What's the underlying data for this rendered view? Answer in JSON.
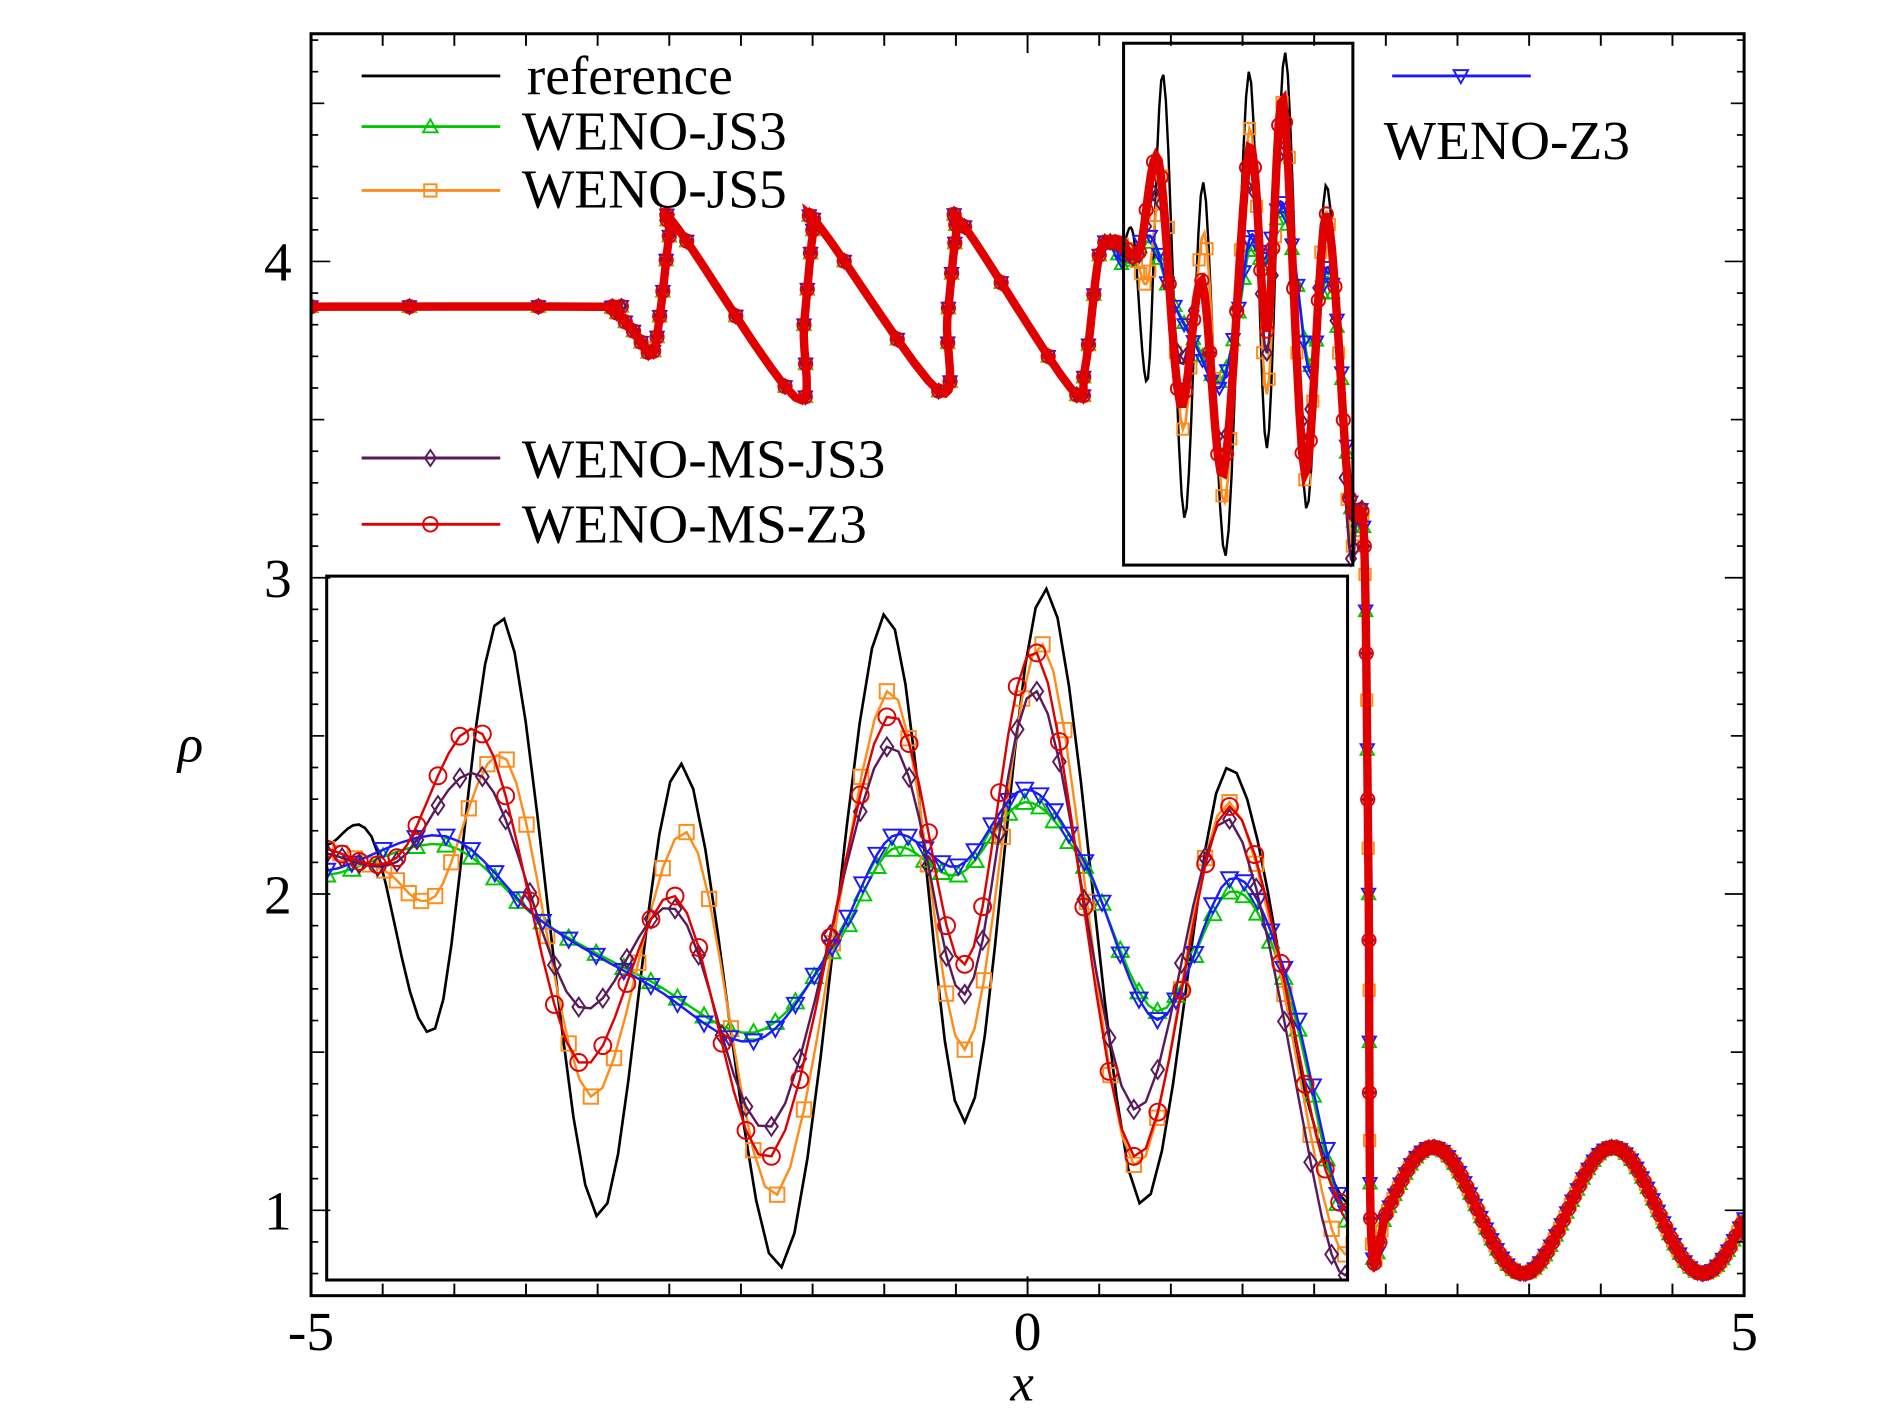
{
  "chart_data": {
    "type": "line",
    "title": "",
    "xlabel": "x",
    "ylabel": "ρ",
    "xlim": [
      -5,
      5
    ],
    "ylim": [
      0.73,
      4.72
    ],
    "xticks": [
      "-5",
      "0",
      "5"
    ],
    "xtick_values": [
      -5,
      0,
      5
    ],
    "yticks": [
      "1",
      "2",
      "3",
      "4"
    ],
    "ytick_values": [
      1,
      2,
      3,
      4
    ],
    "grid": false,
    "legend_placement": "top-left and top-right (split)",
    "zoom_window": {
      "xlim": [
        0.67,
        2.27
      ],
      "ylim": [
        3.04,
        4.69
      ],
      "inset_placement": "lower-left"
    },
    "shared_left": {
      "note": "profile common to all series for x < 0.67",
      "x": [
        -5,
        -3.0,
        -2.9,
        -2.75,
        -2.62,
        -2.56,
        -2.5,
        -2.45,
        -1.62,
        -1.56,
        -1.5,
        -1.45,
        -0.62,
        -0.56,
        -0.5,
        -0.44,
        0.3,
        0.4,
        0.5,
        0.6
      ],
      "y": [
        3.857,
        3.857,
        3.85,
        3.78,
        3.71,
        3.85,
        4.08,
        4.11,
        3.57,
        3.8,
        4.08,
        4.11,
        3.59,
        3.82,
        4.08,
        4.11,
        3.6,
        3.66,
        4.02,
        4.06
      ]
    },
    "shared_right": {
      "note": "shock and post-shock profile common to all series",
      "x": [
        2.3,
        2.35,
        2.38,
        2.4,
        2.5,
        2.6,
        2.7,
        2.8,
        2.9,
        3.0,
        3.1,
        3.2,
        3.3,
        3.4,
        3.5,
        3.6,
        3.7,
        3.8,
        3.9,
        4.0,
        4.1,
        4.2,
        4.3,
        4.4,
        4.5,
        4.6,
        4.7,
        4.8,
        4.9,
        5.0
      ],
      "y": [
        3.2,
        3.1,
        2.0,
        0.893,
        0.987,
        1.084,
        1.161,
        1.198,
        1.187,
        1.13,
        1.041,
        0.942,
        0.858,
        0.808,
        0.804,
        0.85,
        0.932,
        1.03,
        1.121,
        1.183,
        1.199,
        1.167,
        1.093,
        0.998,
        0.903,
        0.831,
        0.8,
        0.819,
        0.882,
        0.974
      ]
    },
    "series": [
      {
        "name": "reference",
        "color": "#000000",
        "marker": "none",
        "x": [
          0.67,
          0.74,
          0.84,
          0.948,
          1.093,
          1.226,
          1.383,
          1.543,
          1.67,
          1.798,
          1.944,
          2.08,
          2.2,
          2.255
        ],
        "y": [
          4.06,
          4.08,
          3.63,
          4.59,
          3.19,
          4.25,
          3.07,
          4.6,
          3.41,
          4.66,
          3.22,
          4.24,
          3.5,
          3.25
        ]
      },
      {
        "name": "WENO-JS3",
        "color": "#00c800",
        "marker": "triangle-up",
        "x": [
          0.67,
          0.857,
          1.008,
          1.178,
          1.339,
          1.462,
          1.556,
          1.66,
          1.764,
          1.858,
          1.972,
          2.085,
          2.17,
          2.255
        ],
        "y": [
          3.99,
          4.06,
          3.88,
          3.74,
          3.62,
          3.81,
          4.05,
          3.99,
          4.16,
          4.01,
          3.67,
          3.95,
          3.75,
          3.22
        ]
      },
      {
        "name": "WENO-JS5",
        "color": "#ff8c1a",
        "marker": "square",
        "x": [
          0.67,
          0.76,
          0.84,
          0.952,
          1.084,
          1.234,
          1.376,
          1.548,
          1.67,
          1.792,
          1.935,
          2.085,
          2.245
        ],
        "y": [
          4.05,
          4.0,
          3.94,
          4.26,
          3.47,
          4.09,
          3.24,
          4.42,
          3.58,
          4.53,
          3.31,
          4.16,
          3.16
        ]
      },
      {
        "name": "WENO-Z3",
        "color": "#1a1aff",
        "marker": "triangle-down",
        "x": [
          0.67,
          0.857,
          1.008,
          1.178,
          1.339,
          1.462,
          1.556,
          1.66,
          1.764,
          1.858,
          1.972,
          2.085,
          2.17,
          2.255
        ],
        "y": [
          4.0,
          4.08,
          3.88,
          3.73,
          3.6,
          3.82,
          4.08,
          4.01,
          4.19,
          4.02,
          3.65,
          3.98,
          3.77,
          3.24
        ]
      },
      {
        "name": "WENO-MS-JS3",
        "color": "#5a1a5a",
        "marker": "diamond",
        "x": [
          0.67,
          0.78,
          0.914,
          1.065,
          1.216,
          1.367,
          1.548,
          1.67,
          1.783,
          1.935,
          2.085,
          2.245
        ],
        "y": [
          4.04,
          4.02,
          4.22,
          3.68,
          3.91,
          3.4,
          4.29,
          3.71,
          4.42,
          3.44,
          4.12,
          3.1
        ]
      },
      {
        "name": "WENO-MS-Z3",
        "color": "#e00000",
        "marker": "circle",
        "x": [
          0.67,
          0.78,
          0.914,
          1.065,
          1.216,
          1.367,
          1.548,
          1.67,
          1.783,
          1.935,
          2.085,
          2.235
        ],
        "y": [
          4.05,
          4.03,
          4.32,
          3.55,
          3.94,
          3.33,
          4.36,
          3.78,
          4.51,
          3.33,
          4.15,
          3.3
        ]
      }
    ]
  }
}
